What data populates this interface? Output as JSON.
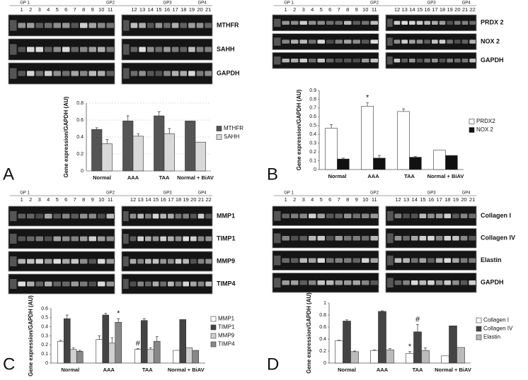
{
  "chart_data": [
    {
      "type": "bar",
      "panel": "A",
      "gel": {
        "groups": [
          "GP 1",
          "GP2",
          "GP3",
          "GP4"
        ],
        "lanes_left": [
          "1",
          "2",
          "3",
          "4",
          "5",
          "6",
          "7",
          "8",
          "9",
          "10",
          "11"
        ],
        "lanes_right": [
          "12",
          "13",
          "14",
          "15",
          "16",
          "17",
          "18",
          "19",
          "20",
          "21"
        ],
        "genes": [
          "MTHFR",
          "SAHH",
          "GAPDH"
        ]
      },
      "y_label": "Gene expression/GAPDH (AU)",
      "categories": [
        "Normal",
        "AAA",
        "TAA",
        "Normal + BiAV"
      ],
      "series": [
        {
          "name": "MTHFR",
          "color": "#555555",
          "values": [
            0.49,
            0.59,
            0.65,
            0.59
          ],
          "errors": [
            0.02,
            0.06,
            0.05,
            null
          ]
        },
        {
          "name": "SAHH",
          "color": "#d9d9d9",
          "values": [
            0.32,
            0.41,
            0.44,
            0.34
          ],
          "errors": [
            0.05,
            0.03,
            0.06,
            null
          ]
        }
      ],
      "ylim": [
        0,
        0.8
      ],
      "yticks": [
        0,
        0.2,
        0.4,
        0.6,
        0.8
      ],
      "grid": true,
      "legend": "right",
      "annotations": []
    },
    {
      "type": "bar",
      "panel": "B",
      "gel": {
        "groups": [
          "GP 1",
          "GP2",
          "GP3",
          "GP4"
        ],
        "lanes_left": [
          "1",
          "2",
          "3",
          "4",
          "5",
          "6",
          "7",
          "8",
          "9",
          "10",
          "11"
        ],
        "lanes_right": [
          "12",
          "13",
          "14",
          "15",
          "16",
          "17",
          "18",
          "19",
          "20",
          "21",
          "22"
        ],
        "genes": [
          "PRDX 2",
          "NOX 2",
          "GAPDH"
        ]
      },
      "y_label": "Gene expression/GAPDH (AU)",
      "categories": [
        "Normal",
        "AAA",
        "TAA",
        "Normal + BiAV"
      ],
      "series": [
        {
          "name": "PRDX2",
          "color": "#ffffff",
          "values": [
            0.47,
            0.72,
            0.66,
            0.22
          ],
          "errors": [
            0.04,
            0.04,
            0.03,
            null
          ]
        },
        {
          "name": "NOX 2",
          "color": "#111111",
          "values": [
            0.12,
            0.13,
            0.14,
            0.16
          ],
          "errors": [
            0.01,
            0.03,
            0.01,
            null
          ]
        }
      ],
      "ylim": [
        0,
        0.9
      ],
      "yticks": [
        0,
        0.1,
        0.2,
        0.3,
        0.4,
        0.5,
        0.6,
        0.7,
        0.8,
        0.9
      ],
      "grid": false,
      "legend": "right",
      "annotations": [
        {
          "text": "*",
          "series": 0,
          "index": 1
        }
      ]
    },
    {
      "type": "bar",
      "panel": "C",
      "gel": {
        "groups": [
          "GP 1",
          "GP2",
          "GP3",
          "GP4"
        ],
        "lanes_left": [
          "1",
          "2",
          "3",
          "4",
          "5",
          "6",
          "7",
          "8",
          "9",
          "10",
          "11"
        ],
        "lanes_right": [
          "12",
          "13",
          "14",
          "15",
          "16",
          "17",
          "18",
          "19",
          "20",
          "21",
          "22"
        ],
        "genes": [
          "MMP1",
          "TIMP1",
          "MMP9",
          "TIMP4"
        ]
      },
      "y_label": "Gene expression/GAPDH (AU)",
      "categories": [
        "Normal",
        "AAA",
        "TAA",
        "Normal + BiAV"
      ],
      "series": [
        {
          "name": "MMP1",
          "color": "#ffffff",
          "values": [
            0.24,
            0.26,
            0.15,
            0.14
          ],
          "errors": [
            0.01,
            0.04,
            0.01,
            null
          ]
        },
        {
          "name": "TIMP1",
          "color": "#444444",
          "values": [
            0.49,
            0.53,
            0.47,
            0.48
          ],
          "errors": [
            0.04,
            0.02,
            0.02,
            null
          ]
        },
        {
          "name": "MMP9",
          "color": "#d0d0d0",
          "values": [
            0.15,
            0.22,
            0.15,
            0.17
          ],
          "errors": [
            0.02,
            0.06,
            0.02,
            null
          ]
        },
        {
          "name": "TIMP4",
          "color": "#888888",
          "values": [
            0.13,
            0.45,
            0.24,
            0.14
          ],
          "errors": [
            0.01,
            0.04,
            0.05,
            null
          ]
        }
      ],
      "ylim": [
        0,
        0.6
      ],
      "yticks": [
        0,
        0.1,
        0.2,
        0.3,
        0.4,
        0.5,
        0.6
      ],
      "grid": false,
      "legend": "right",
      "annotations": [
        {
          "text": "*",
          "series": 3,
          "index": 1
        },
        {
          "text": "#",
          "series": 0,
          "index": 2
        }
      ]
    },
    {
      "type": "bar",
      "panel": "D",
      "gel": {
        "groups": [
          "GP 1",
          "GP2",
          "GP3",
          "GP4"
        ],
        "lanes_left": [
          "1",
          "2",
          "3",
          "4",
          "5",
          "6",
          "7",
          "8",
          "9",
          "10",
          "11"
        ],
        "lanes_right": [
          "12",
          "13",
          "14",
          "15",
          "16",
          "17",
          "18",
          "19",
          "20",
          "21"
        ],
        "genes": [
          "Collagen I",
          "Collagen IV",
          "Elastin",
          "GAPDH"
        ]
      },
      "y_label": "Gene expression/GAPDH (AU)",
      "categories": [
        "Normal",
        "AAA",
        "TAA",
        "Normal + BiAV"
      ],
      "series": [
        {
          "name": "Collagen I",
          "color": "#ffffff",
          "values": [
            0.37,
            0.21,
            0.16,
            0.12
          ],
          "errors": [
            0.01,
            0.01,
            0.03,
            null
          ]
        },
        {
          "name": "Collagen IV",
          "color": "#444444",
          "values": [
            0.7,
            0.86,
            0.52,
            0.62
          ],
          "errors": [
            0.02,
            0.01,
            0.12,
            null
          ]
        },
        {
          "name": "Elastin",
          "color": "#bbbbbb",
          "values": [
            0.19,
            0.22,
            0.21,
            0.26
          ],
          "errors": [
            0.01,
            0.02,
            0.04,
            null
          ]
        }
      ],
      "ylim": [
        0,
        1
      ],
      "yticks": [
        0,
        0.2,
        0.4,
        0.6,
        0.8,
        1
      ],
      "grid": false,
      "legend": "right",
      "annotations": [
        {
          "text": "*",
          "series": 0,
          "index": 2
        },
        {
          "text": "#",
          "series": 1,
          "index": 2
        }
      ]
    }
  ]
}
